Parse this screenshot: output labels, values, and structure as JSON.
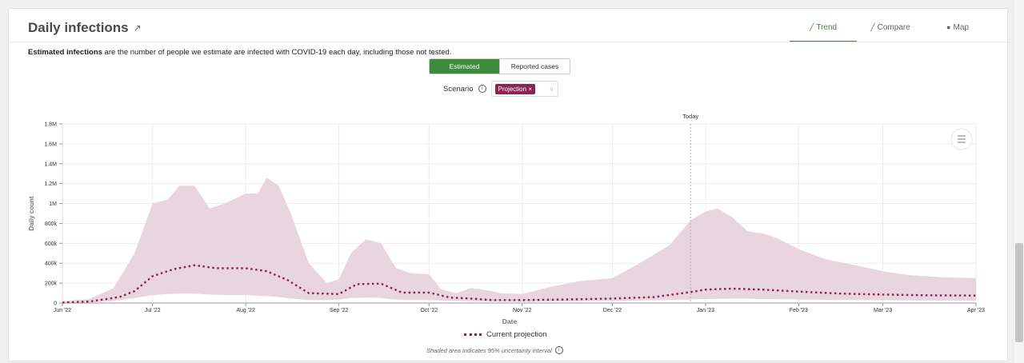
{
  "header": {
    "title": "Daily infections",
    "tabs": [
      {
        "label": "Trend",
        "icon": "line-chart-icon",
        "active": true
      },
      {
        "label": "Compare",
        "icon": "compare-chart-icon",
        "active": false
      },
      {
        "label": "Map",
        "icon": "globe-icon",
        "active": false
      }
    ]
  },
  "description": {
    "bold": "Estimated infections",
    "rest": " are the number of people we estimate are infected with COVID-19 each day, including those not tested."
  },
  "toggle": {
    "estimated": "Estimated",
    "reported": "Reported cases",
    "selected": "Estimated"
  },
  "scenario": {
    "label": "Scenario",
    "chip": "Projection",
    "chip_close": "×"
  },
  "colors": {
    "accent": "#3d8b3d",
    "series": "#8c2452",
    "band": "#e8d5de"
  },
  "legend": {
    "label": "Current projection"
  },
  "footnote": "Shaded area indicates 95% uncertainty interval",
  "chart_data": {
    "type": "area",
    "xlabel": "Date",
    "ylabel": "Daily count",
    "x_ticks": [
      "Jun '22",
      "Jul '22",
      "Aug '22",
      "Sep '22",
      "Oct '22",
      "Nov '22",
      "Dec '22",
      "Jan '23",
      "Feb '23",
      "Mar '23",
      "Apr '23"
    ],
    "y_ticks": [
      "0",
      "200k",
      "400k",
      "600k",
      "800k",
      "1M",
      "1.2M",
      "1.4M",
      "1.6M",
      "1.8M"
    ],
    "ylim": [
      0,
      1800000
    ],
    "xlim": [
      "2022-06-01",
      "2023-04-01"
    ],
    "today_label": "Today",
    "today": "2022-12-27",
    "grid": true,
    "series": [
      {
        "name": "Current projection",
        "style": "dotted",
        "x": [
          "2022-06-01",
          "2022-06-10",
          "2022-06-20",
          "2022-06-25",
          "2022-07-01",
          "2022-07-08",
          "2022-07-15",
          "2022-07-22",
          "2022-08-01",
          "2022-08-08",
          "2022-08-15",
          "2022-08-22",
          "2022-09-01",
          "2022-09-07",
          "2022-09-15",
          "2022-09-22",
          "2022-10-01",
          "2022-10-08",
          "2022-10-15",
          "2022-10-22",
          "2022-11-01",
          "2022-11-15",
          "2022-12-01",
          "2022-12-15",
          "2022-12-27",
          "2023-01-01",
          "2023-01-10",
          "2023-01-20",
          "2023-02-01",
          "2023-02-15",
          "2023-03-01",
          "2023-03-15",
          "2023-04-01"
        ],
        "values": [
          5000,
          15000,
          60000,
          120000,
          270000,
          340000,
          380000,
          350000,
          350000,
          320000,
          230000,
          100000,
          90000,
          190000,
          195000,
          105000,
          105000,
          55000,
          45000,
          30000,
          30000,
          35000,
          45000,
          60000,
          110000,
          135000,
          145000,
          135000,
          115000,
          95000,
          85000,
          78000,
          75000
        ]
      }
    ],
    "uncertainty_band": {
      "x": [
        "2022-06-01",
        "2022-06-10",
        "2022-06-18",
        "2022-06-25",
        "2022-07-01",
        "2022-07-06",
        "2022-07-10",
        "2022-07-15",
        "2022-07-20",
        "2022-07-25",
        "2022-08-01",
        "2022-08-05",
        "2022-08-08",
        "2022-08-12",
        "2022-08-16",
        "2022-08-22",
        "2022-08-28",
        "2022-09-01",
        "2022-09-05",
        "2022-09-10",
        "2022-09-15",
        "2022-09-20",
        "2022-09-25",
        "2022-10-01",
        "2022-10-05",
        "2022-10-10",
        "2022-10-15",
        "2022-10-20",
        "2022-10-25",
        "2022-11-01",
        "2022-11-10",
        "2022-11-20",
        "2022-12-01",
        "2022-12-10",
        "2022-12-20",
        "2022-12-27",
        "2023-01-01",
        "2023-01-05",
        "2023-01-10",
        "2023-01-15",
        "2023-01-20",
        "2023-01-25",
        "2023-02-01",
        "2023-02-10",
        "2023-02-20",
        "2023-03-01",
        "2023-03-10",
        "2023-03-20",
        "2023-04-01"
      ],
      "upper": [
        20000,
        40000,
        150000,
        500000,
        1000000,
        1040000,
        1180000,
        1180000,
        950000,
        1000000,
        1100000,
        1100000,
        1260000,
        1180000,
        900000,
        400000,
        200000,
        240000,
        500000,
        640000,
        600000,
        350000,
        300000,
        290000,
        140000,
        100000,
        150000,
        130000,
        100000,
        90000,
        160000,
        220000,
        250000,
        400000,
        580000,
        830000,
        920000,
        950000,
        860000,
        720000,
        700000,
        650000,
        540000,
        440000,
        380000,
        320000,
        280000,
        260000,
        250000
      ],
      "lower": [
        2000,
        5000,
        20000,
        50000,
        80000,
        90000,
        95000,
        93000,
        85000,
        80000,
        80000,
        75000,
        70000,
        60000,
        45000,
        30000,
        30000,
        35000,
        50000,
        55000,
        50000,
        35000,
        30000,
        30000,
        25000,
        20000,
        18000,
        15000,
        12000,
        12000,
        15000,
        18000,
        20000,
        25000,
        30000,
        35000,
        40000,
        42000,
        45000,
        44000,
        40000,
        38000,
        35000,
        32000,
        30000,
        28000,
        26000,
        25000,
        24000
      ]
    }
  }
}
